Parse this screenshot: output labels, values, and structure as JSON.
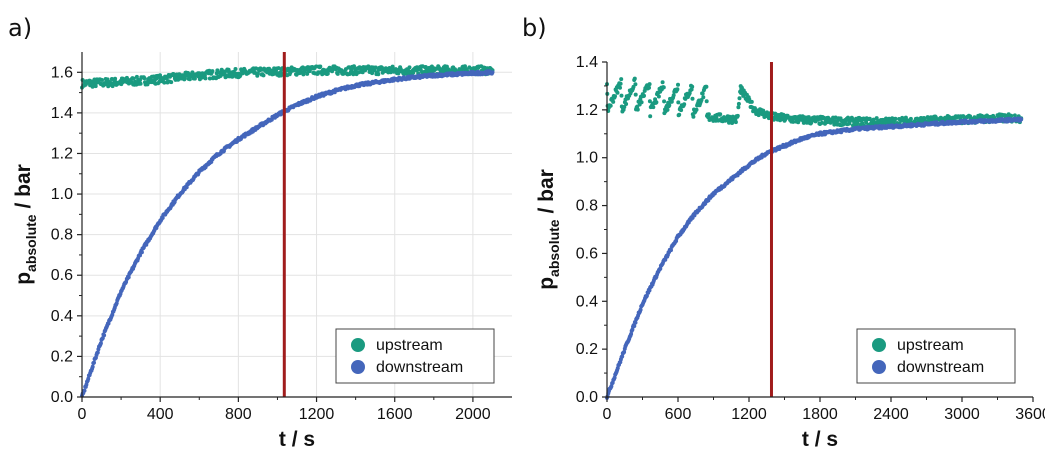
{
  "colors": {
    "upstream": "#1a9a80",
    "downstream": "#4466bb",
    "marker_line": "#a01c1c",
    "grid": "#e3e3e3"
  },
  "chart_data": [
    {
      "type": "scatter",
      "panel_label": "a)",
      "xlabel": "t / s",
      "ylabel": {
        "main": "p",
        "subscript": "absolute",
        "suffix": " / bar"
      },
      "xlim": [
        0,
        2200
      ],
      "ylim": [
        0,
        1.7
      ],
      "xticks": [
        "0",
        "400",
        "800",
        "1200",
        "1600",
        "2000"
      ],
      "yticks": [
        "0.0",
        "0.2",
        "0.4",
        "0.6",
        "0.8",
        "1.0",
        "1.2",
        "1.4",
        "1.6"
      ],
      "grid": true,
      "legend_position": "bottom-right",
      "vertical_marker_x": 1035,
      "series": [
        {
          "name": "upstream",
          "color_key": "upstream",
          "x": [
            0,
            150,
            300,
            450,
            600,
            750,
            900,
            1050,
            1200,
            1350,
            1500,
            1650,
            1800,
            1950,
            2100
          ],
          "y": [
            1.545,
            1.55,
            1.558,
            1.57,
            1.585,
            1.595,
            1.6,
            1.605,
            1.61,
            1.61,
            1.61,
            1.61,
            1.61,
            1.61,
            1.61
          ]
        },
        {
          "name": "downstream",
          "color_key": "downstream",
          "x": [
            0,
            100,
            200,
            300,
            400,
            500,
            600,
            700,
            800,
            900,
            1000,
            1100,
            1200,
            1300,
            1400,
            1500,
            1600,
            1700,
            1800,
            1900,
            2000,
            2100
          ],
          "y": [
            0.0,
            0.28,
            0.52,
            0.71,
            0.87,
            1.0,
            1.11,
            1.2,
            1.27,
            1.33,
            1.39,
            1.44,
            1.48,
            1.51,
            1.535,
            1.55,
            1.565,
            1.575,
            1.585,
            1.59,
            1.595,
            1.6
          ]
        }
      ]
    },
    {
      "type": "scatter",
      "panel_label": "b)",
      "xlabel": "t / s",
      "ylabel": {
        "main": "p",
        "subscript": "absolute",
        "suffix": " / bar"
      },
      "xlim": [
        0,
        3600
      ],
      "ylim": [
        0,
        1.4
      ],
      "xticks": [
        "0",
        "600",
        "1200",
        "1800",
        "2400",
        "3000",
        "3600"
      ],
      "yticks": [
        "0.0",
        "0.2",
        "0.4",
        "0.6",
        "0.8",
        "1.0",
        "1.2",
        "1.4"
      ],
      "grid": false,
      "legend_position": "bottom-right",
      "vertical_marker_x": 1390,
      "series": [
        {
          "name": "upstream",
          "color_key": "upstream",
          "x": [
            0,
            5,
            120,
            125,
            240,
            245,
            360,
            365,
            480,
            485,
            600,
            605,
            720,
            725,
            840,
            845,
            1100,
            1130,
            1135,
            1250,
            1400,
            1600,
            1800,
            2100,
            2400,
            2700,
            3000,
            3300,
            3500
          ],
          "y": [
            1.3,
            1.2,
            1.32,
            1.2,
            1.32,
            1.2,
            1.31,
            1.19,
            1.31,
            1.19,
            1.3,
            1.19,
            1.3,
            1.18,
            1.29,
            1.17,
            1.16,
            1.29,
            1.28,
            1.2,
            1.17,
            1.16,
            1.155,
            1.15,
            1.15,
            1.155,
            1.16,
            1.165,
            1.165
          ]
        },
        {
          "name": "downstream",
          "color_key": "downstream",
          "x": [
            0,
            150,
            300,
            450,
            600,
            750,
            900,
            1050,
            1200,
            1350,
            1500,
            1650,
            1800,
            2100,
            2400,
            2700,
            3000,
            3300,
            3500
          ],
          "y": [
            0.0,
            0.2,
            0.39,
            0.54,
            0.67,
            0.77,
            0.85,
            0.91,
            0.97,
            1.02,
            1.05,
            1.08,
            1.1,
            1.12,
            1.13,
            1.14,
            1.15,
            1.155,
            1.16
          ]
        }
      ]
    }
  ]
}
